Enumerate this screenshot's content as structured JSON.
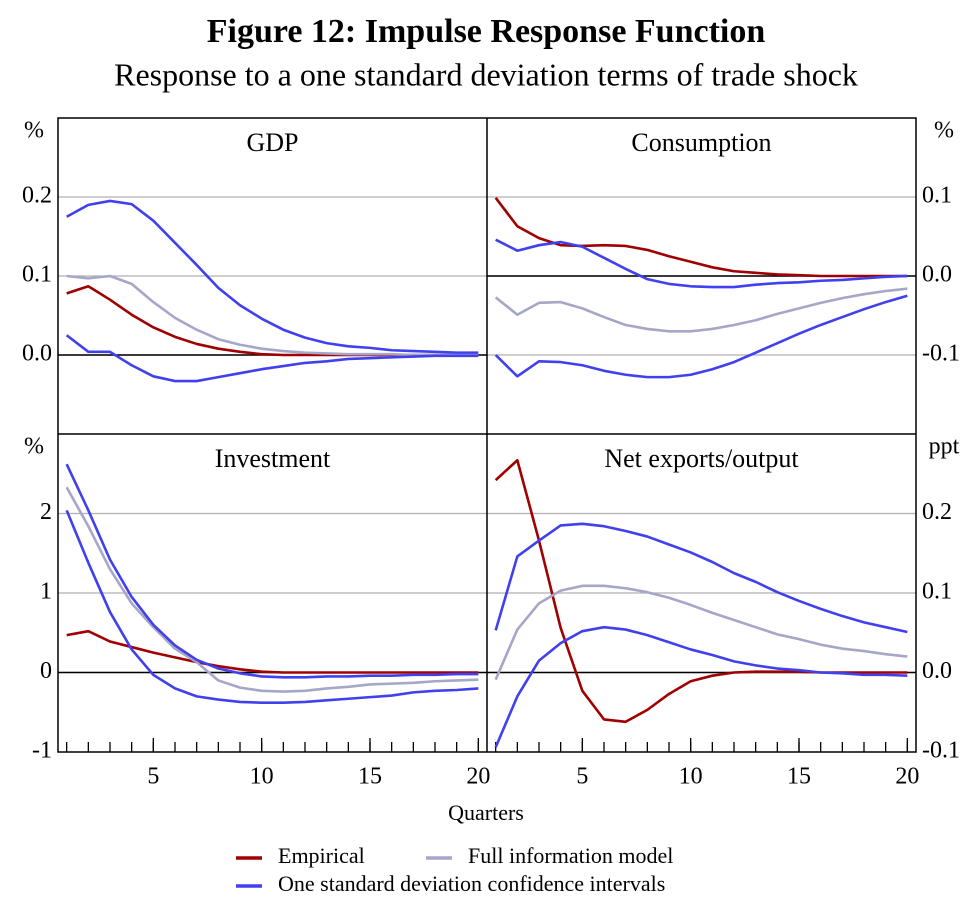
{
  "title": "Figure 12: Impulse Response Function",
  "subtitle": "Response to a one standard deviation terms of trade shock",
  "x_label": "Quarters",
  "chart_data": [
    {
      "type": "line",
      "title": "GDP",
      "y_unit": "%",
      "y_axis_side": "left",
      "x": [
        1,
        2,
        3,
        4,
        5,
        6,
        7,
        8,
        9,
        10,
        11,
        12,
        13,
        14,
        15,
        16,
        17,
        18,
        19,
        20
      ],
      "xlim": [
        0.6,
        20.4
      ],
      "ylim": [
        -0.1,
        0.3
      ],
      "yticks": [
        {
          "value": 0,
          "label": "0.0"
        },
        0.1,
        0.2
      ],
      "grid": true,
      "series": [
        {
          "name": "Empirical",
          "color": "#a00000",
          "values": [
            0.078,
            0.087,
            0.07,
            0.051,
            0.035,
            0.023,
            0.014,
            0.008,
            0.004,
            0.001,
            0,
            0,
            0,
            0,
            0,
            0,
            0,
            0,
            0,
            0
          ]
        },
        {
          "name": "Full information model",
          "color": "#a6a6c8",
          "values": [
            0.1,
            0.097,
            0.1,
            0.09,
            0.067,
            0.047,
            0.032,
            0.02,
            0.013,
            0.008,
            0.005,
            0.003,
            0.002,
            0.001,
            0.001,
            0.001,
            0,
            0,
            0,
            0
          ]
        },
        {
          "name": "One standard deviation confidence intervals",
          "color": "#4040ee",
          "values": [
            0.175,
            0.19,
            0.195,
            0.191,
            0.17,
            0.142,
            0.114,
            0.085,
            0.063,
            0.046,
            0.032,
            0.022,
            0.015,
            0.011,
            0.009,
            0.006,
            0.005,
            0.004,
            0.003,
            0.003
          ]
        },
        {
          "name": "One standard deviation confidence intervals",
          "color": "#4040ee",
          "values": [
            0.025,
            0.004,
            0.004,
            -0.013,
            -0.027,
            -0.033,
            -0.033,
            -0.028,
            -0.023,
            -0.018,
            -0.014,
            -0.01,
            -0.008,
            -0.005,
            -0.004,
            -0.003,
            -0.002,
            -0.001,
            -0.001,
            -0.001
          ]
        }
      ]
    },
    {
      "type": "line",
      "title": "Consumption",
      "y_unit": "%",
      "y_axis_side": "right",
      "x": [
        1,
        2,
        3,
        4,
        5,
        6,
        7,
        8,
        9,
        10,
        11,
        12,
        13,
        14,
        15,
        16,
        17,
        18,
        19,
        20
      ],
      "xlim": [
        0.6,
        20.4
      ],
      "ylim": [
        -0.2,
        0.2
      ],
      "yticks": [
        -0.1,
        {
          "value": 0,
          "label": "0.0"
        },
        0.1
      ],
      "grid": true,
      "series": [
        {
          "name": "Empirical",
          "color": "#a00000",
          "values": [
            0.099,
            0.063,
            0.048,
            0.039,
            0.038,
            0.039,
            0.038,
            0.033,
            0.025,
            0.018,
            0.011,
            0.006,
            0.004,
            0.002,
            0.001,
            0,
            0,
            0,
            0,
            0
          ]
        },
        {
          "name": "Full information model",
          "color": "#a6a6c8",
          "values": [
            -0.027,
            -0.049,
            -0.034,
            -0.033,
            -0.041,
            -0.052,
            -0.062,
            -0.067,
            -0.07,
            -0.07,
            -0.067,
            -0.062,
            -0.056,
            -0.048,
            -0.041,
            -0.034,
            -0.028,
            -0.023,
            -0.019,
            -0.016
          ]
        },
        {
          "name": "One standard deviation confidence intervals",
          "color": "#4040ee",
          "values": [
            0.046,
            0.032,
            0.039,
            0.043,
            0.037,
            0.023,
            0.009,
            -0.004,
            -0.01,
            -0.013,
            -0.014,
            -0.014,
            -0.011,
            -0.009,
            -0.008,
            -0.006,
            -0.005,
            -0.003,
            -0.001,
            0
          ]
        },
        {
          "name": "One standard deviation confidence intervals",
          "color": "#4040ee",
          "values": [
            -0.1,
            -0.127,
            -0.108,
            -0.109,
            -0.113,
            -0.12,
            -0.125,
            -0.128,
            -0.128,
            -0.125,
            -0.118,
            -0.109,
            -0.097,
            -0.085,
            -0.073,
            -0.062,
            -0.052,
            -0.042,
            -0.033,
            -0.025
          ]
        }
      ]
    },
    {
      "type": "line",
      "title": "Investment",
      "y_unit": "%",
      "y_axis_side": "left",
      "x": [
        1,
        2,
        3,
        4,
        5,
        6,
        7,
        8,
        9,
        10,
        11,
        12,
        13,
        14,
        15,
        16,
        17,
        18,
        19,
        20
      ],
      "xlim": [
        0.6,
        20.4
      ],
      "ylim": [
        -1,
        3
      ],
      "xticks": [
        5,
        10,
        15,
        20
      ],
      "yticks": [
        -1,
        0,
        1,
        2
      ],
      "grid": true,
      "series": [
        {
          "name": "Empirical",
          "color": "#a00000",
          "values": [
            0.47,
            0.52,
            0.39,
            0.32,
            0.25,
            0.19,
            0.13,
            0.08,
            0.04,
            0.01,
            0,
            0,
            0,
            0,
            0,
            0,
            0,
            0,
            0,
            0
          ]
        },
        {
          "name": "Full information model",
          "color": "#a6a6c8",
          "values": [
            2.33,
            1.84,
            1.3,
            0.87,
            0.57,
            0.3,
            0.13,
            -0.1,
            -0.19,
            -0.23,
            -0.24,
            -0.23,
            -0.2,
            -0.18,
            -0.15,
            -0.14,
            -0.13,
            -0.11,
            -0.1,
            -0.09
          ]
        },
        {
          "name": "One standard deviation confidence intervals",
          "color": "#4040ee",
          "values": [
            2.62,
            2.04,
            1.42,
            0.95,
            0.6,
            0.34,
            0.16,
            0.05,
            -0.01,
            -0.05,
            -0.06,
            -0.06,
            -0.05,
            -0.05,
            -0.04,
            -0.04,
            -0.03,
            -0.03,
            -0.02,
            -0.02
          ]
        },
        {
          "name": "One standard deviation confidence intervals",
          "color": "#4040ee",
          "values": [
            2.04,
            1.38,
            0.76,
            0.29,
            -0.03,
            -0.2,
            -0.3,
            -0.34,
            -0.37,
            -0.38,
            -0.38,
            -0.37,
            -0.35,
            -0.33,
            -0.31,
            -0.29,
            -0.25,
            -0.23,
            -0.22,
            -0.2
          ]
        }
      ]
    },
    {
      "type": "line",
      "title": "Net exports/output",
      "y_unit": "ppt",
      "y_axis_side": "right",
      "x": [
        1,
        2,
        3,
        4,
        5,
        6,
        7,
        8,
        9,
        10,
        11,
        12,
        13,
        14,
        15,
        16,
        17,
        18,
        19,
        20
      ],
      "xlim": [
        0.6,
        20.4
      ],
      "ylim": [
        -0.1,
        0.3
      ],
      "xticks": [
        5,
        10,
        15,
        20
      ],
      "yticks": [
        -0.1,
        {
          "value": 0,
          "label": "0.0"
        },
        0.1,
        0.2
      ],
      "grid": true,
      "series": [
        {
          "name": "Empirical",
          "color": "#a00000",
          "values": [
            0.242,
            0.267,
            0.166,
            0.056,
            -0.023,
            -0.059,
            -0.062,
            -0.047,
            -0.027,
            -0.011,
            -0.004,
            0,
            0.001,
            0.001,
            0.001,
            0,
            0,
            0,
            0,
            0
          ]
        },
        {
          "name": "Full information model",
          "color": "#a6a6c8",
          "values": [
            -0.009,
            0.054,
            0.087,
            0.103,
            0.109,
            0.109,
            0.106,
            0.101,
            0.094,
            0.085,
            0.075,
            0.066,
            0.057,
            0.048,
            0.042,
            0.035,
            0.03,
            0.027,
            0.023,
            0.02
          ]
        },
        {
          "name": "One standard deviation confidence intervals",
          "color": "#4040ee",
          "values": [
            0.053,
            0.146,
            0.166,
            0.185,
            0.187,
            0.184,
            0.178,
            0.171,
            0.161,
            0.151,
            0.139,
            0.125,
            0.114,
            0.101,
            0.09,
            0.08,
            0.071,
            0.063,
            0.057,
            0.051
          ]
        },
        {
          "name": "One standard deviation confidence intervals",
          "color": "#4040ee",
          "values": [
            -0.094,
            -0.03,
            0.015,
            0.037,
            0.052,
            0.057,
            0.054,
            0.047,
            0.038,
            0.029,
            0.022,
            0.014,
            0.009,
            0.005,
            0.003,
            0,
            -0.001,
            -0.003,
            -0.003,
            -0.004
          ]
        }
      ]
    }
  ]
}
